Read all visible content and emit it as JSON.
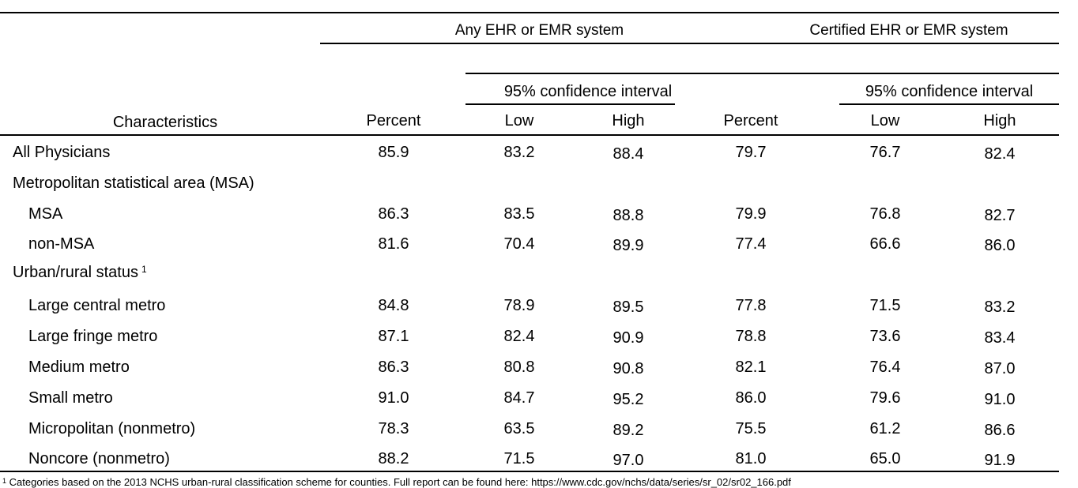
{
  "header": {
    "group_any": "Any EHR or EMR system",
    "group_certified": "Certified EHR or EMR system",
    "ci_label": "95% confidence interval",
    "characteristics": "Characteristics",
    "percent": "Percent",
    "low": "Low",
    "high": "High"
  },
  "rows": [
    {
      "label": "All Physicians",
      "any_pct": "85.9",
      "any_low": "83.2",
      "any_high": "88.4",
      "cert_pct": "79.7",
      "cert_low": "76.7",
      "cert_high": "82.4"
    },
    {
      "label": "Metropolitan statistical area (MSA)",
      "any_pct": "",
      "any_low": "",
      "any_high": "",
      "cert_pct": "",
      "cert_low": "",
      "cert_high": ""
    },
    {
      "label": "MSA",
      "any_pct": "86.3",
      "any_low": "83.5",
      "any_high": "88.8",
      "cert_pct": "79.9",
      "cert_low": "76.8",
      "cert_high": "82.7"
    },
    {
      "label": "non-MSA",
      "any_pct": "81.6",
      "any_low": "70.4",
      "any_high": "89.9",
      "cert_pct": "77.4",
      "cert_low": "66.6",
      "cert_high": "86.0"
    },
    {
      "label": "Urban/rural status",
      "sup": "1",
      "any_pct": "",
      "any_low": "",
      "any_high": "",
      "cert_pct": "",
      "cert_low": "",
      "cert_high": ""
    },
    {
      "label": "Large central metro",
      "any_pct": "84.8",
      "any_low": "78.9",
      "any_high": "89.5",
      "cert_pct": "77.8",
      "cert_low": "71.5",
      "cert_high": "83.2"
    },
    {
      "label": "Large fringe metro",
      "any_pct": "87.1",
      "any_low": "82.4",
      "any_high": "90.9",
      "cert_pct": "78.8",
      "cert_low": "73.6",
      "cert_high": "83.4"
    },
    {
      "label": "Medium metro",
      "any_pct": "86.3",
      "any_low": "80.8",
      "any_high": "90.8",
      "cert_pct": "82.1",
      "cert_low": "76.4",
      "cert_high": "87.0"
    },
    {
      "label": "Small metro",
      "any_pct": "91.0",
      "any_low": "84.7",
      "any_high": "95.2",
      "cert_pct": "86.0",
      "cert_low": "79.6",
      "cert_high": "91.0"
    },
    {
      "label": "Micropolitan (nonmetro)",
      "any_pct": "78.3",
      "any_low": "63.5",
      "any_high": "89.2",
      "cert_pct": "75.5",
      "cert_low": "61.2",
      "cert_high": "86.6"
    },
    {
      "label": "Noncore (nonmetro)",
      "any_pct": "88.2",
      "any_low": "71.5",
      "any_high": "97.0",
      "cert_pct": "81.0",
      "cert_low": "65.0",
      "cert_high": "91.9"
    }
  ],
  "footnote": {
    "marker": "1",
    "text": "Categories based on the 2013 NCHS urban-rural classification scheme for counties. Full report can be found here: https://www.cdc.gov/nchs/data/series/sr_02/sr02_166.pdf"
  }
}
